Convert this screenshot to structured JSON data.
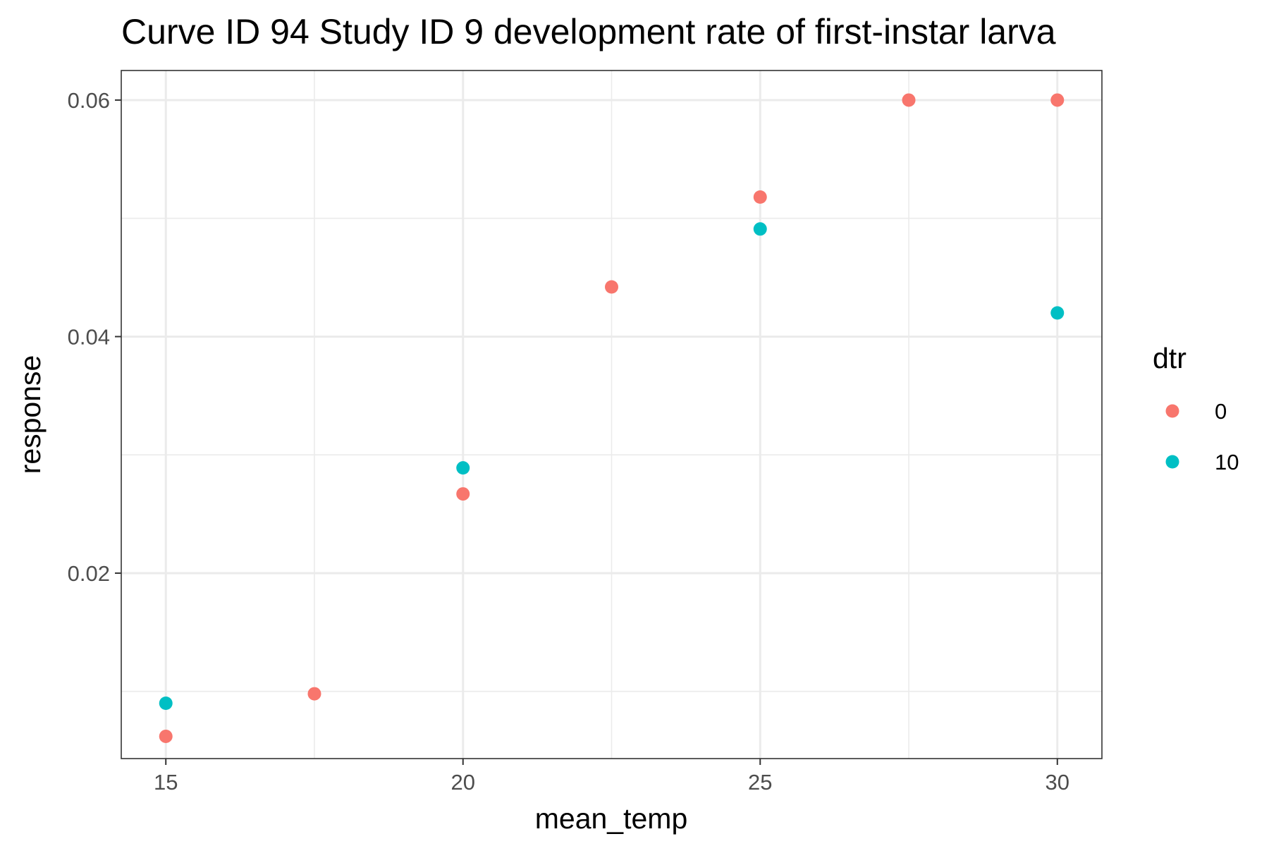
{
  "chart_data": {
    "type": "scatter",
    "title": "Curve ID 94 Study ID 9 development rate of first-instar larva",
    "xlabel": "mean_temp",
    "ylabel": "response",
    "xlim": [
      14.25,
      30.75
    ],
    "ylim": [
      0.00432,
      0.0625
    ],
    "x_ticks": [
      15,
      20,
      25,
      30
    ],
    "x_tick_labels": [
      "15",
      "20",
      "25",
      "30"
    ],
    "y_ticks": [
      0.02,
      0.04,
      0.06
    ],
    "y_tick_labels": [
      "0.02",
      "0.04",
      "0.06"
    ],
    "x_minor": [
      17.5,
      22.5,
      27.5
    ],
    "y_minor": [
      0.01,
      0.03,
      0.05
    ],
    "grid": true,
    "legend": {
      "title": "dtr",
      "placement": "right"
    },
    "series": [
      {
        "name": "0",
        "color": "#F8766D",
        "points": [
          {
            "x": 15,
            "y": 0.0062
          },
          {
            "x": 17.5,
            "y": 0.0098
          },
          {
            "x": 20,
            "y": 0.0267
          },
          {
            "x": 22.5,
            "y": 0.0442
          },
          {
            "x": 25,
            "y": 0.0518
          },
          {
            "x": 27.5,
            "y": 0.06
          },
          {
            "x": 30,
            "y": 0.06
          }
        ]
      },
      {
        "name": "10",
        "color": "#00BFC4",
        "points": [
          {
            "x": 15,
            "y": 0.009
          },
          {
            "x": 20,
            "y": 0.0289
          },
          {
            "x": 25,
            "y": 0.0491
          },
          {
            "x": 30,
            "y": 0.042
          }
        ]
      }
    ]
  }
}
